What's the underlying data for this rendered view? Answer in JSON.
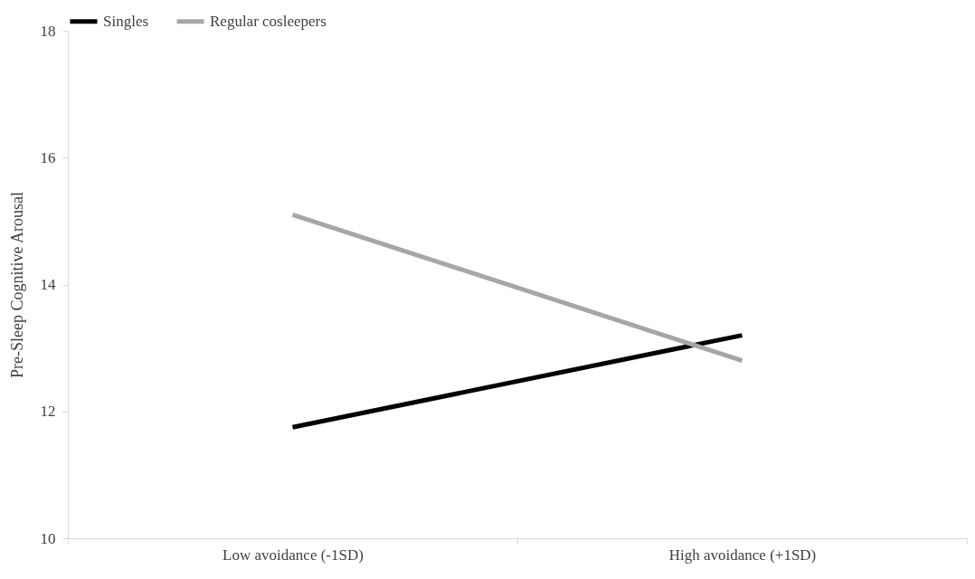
{
  "chart_data": {
    "type": "line",
    "ylabel": "Pre-Sleep Cognitive Arousal",
    "categories": [
      "Low avoidance (-1SD)",
      "High avoidance (+1SD)"
    ],
    "series": [
      {
        "name": "Singles",
        "color": "#000000",
        "values": [
          11.75,
          13.2
        ]
      },
      {
        "name": "Regular cosleepers",
        "color": "#a6a6a6",
        "values": [
          15.1,
          12.8
        ]
      }
    ],
    "ylim": [
      10,
      18
    ],
    "yticks": [
      10,
      12,
      14,
      16,
      18
    ],
    "grid": false,
    "legend": "top",
    "marker": "none",
    "line_style": "solid"
  }
}
